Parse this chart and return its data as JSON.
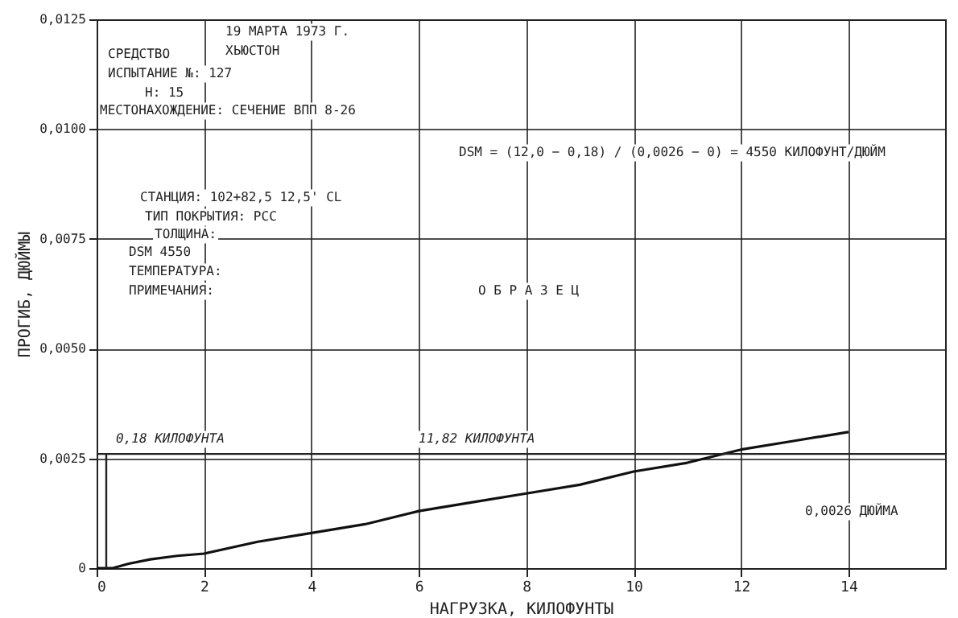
{
  "chart_data": {
    "type": "line",
    "xlabel": "НАГРУЗКА, КИЛОФУНТЫ",
    "ylabel": "ПРОГИБ, ДЮЙМЫ",
    "x": [
      0,
      0.3,
      0.6,
      1,
      1.5,
      2,
      3,
      4,
      5,
      6,
      7,
      8,
      9,
      10,
      11,
      12,
      13,
      14
    ],
    "values": [
      0,
      0,
      0.0001,
      0.0002,
      0.00028,
      0.00033,
      0.0006,
      0.0008,
      0.001,
      0.0013,
      0.0015,
      0.0017,
      0.0019,
      0.0022,
      0.0024,
      0.0027,
      0.0029,
      0.0031
    ],
    "color": "#111111",
    "xlim": [
      0,
      15.8
    ],
    "ylim": [
      0,
      0.0125
    ],
    "xticks": [
      0,
      2,
      4,
      6,
      8,
      10,
      12,
      14
    ],
    "yticks": [
      0,
      {
        "value": 0.0025,
        "label": "0,0025"
      },
      {
        "value": 0.005,
        "label": "0,0050"
      },
      {
        "value": 0.0075,
        "label": "0,0075"
      },
      {
        "value": 0.01,
        "label": "0,0100"
      },
      {
        "value": 0.0125,
        "label": "0,0125"
      }
    ],
    "grid": true,
    "marker": "none",
    "line_style": "solid",
    "ref_lines": [
      {
        "axis": "y",
        "value": 0.0026,
        "label": "11,82 КИЛОФУНТА"
      },
      {
        "axis": "x",
        "value": 0.18,
        "label": "0,18 КИЛОФУНТА"
      }
    ],
    "annotations": [
      "19 МАРТА 1973 Г.",
      "ХЬЮСТОН",
      "СРЕДСТВО",
      "ИСПЫТАНИЕ №: 127",
      "Н: 15",
      "МЕСТОНАХОЖДЕНИЕ: СЕЧЕНИЕ ВПП 8-26",
      "DSM = (12,0 − 0,18) / (0,0026 − 0) = 4550 КИЛОФУНТ/ДЮЙМ",
      "СТАНЦИЯ: 102+82,5 12,5' CL",
      "ТИП ПОКРЫТИЯ: PCC",
      "ТОЛЩИНА:",
      "DSM 4550",
      "ТЕМПЕРАТУРА:",
      "ПРИМЕЧАНИЯ:",
      "О Б Р А З Е Ц",
      "0,0026 ДЮЙМА"
    ]
  }
}
